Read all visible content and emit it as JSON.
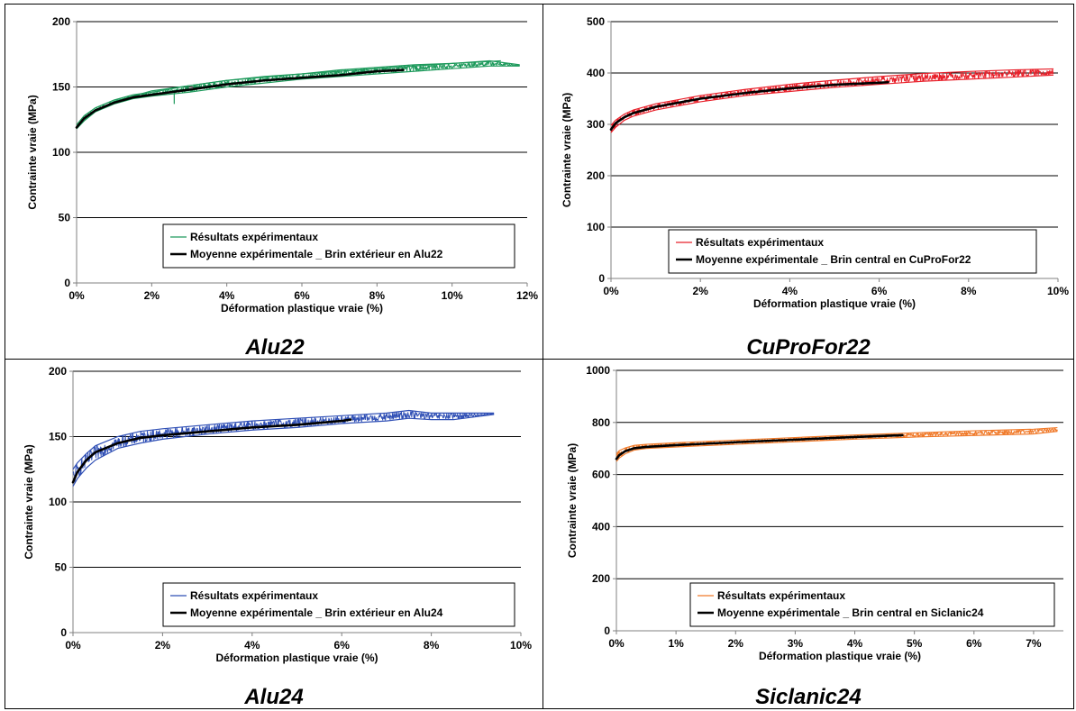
{
  "chart_data": [
    {
      "type": "line",
      "caption": "Alu22",
      "xlabel": "Déformation plastique vraie (%)",
      "ylabel": "Contrainte vraie (MPa)",
      "xlim": [
        0,
        12
      ],
      "ylim": [
        0,
        200
      ],
      "xticks": [
        0,
        2,
        4,
        6,
        8,
        10,
        12
      ],
      "yticks": [
        0,
        50,
        100,
        150,
        200
      ],
      "xtick_labels": [
        "0%",
        "2%",
        "4%",
        "6%",
        "8%",
        "10%",
        "12%"
      ],
      "ytick_labels": [
        "0",
        "50",
        "100",
        "150",
        "200"
      ],
      "grid": "horizontal",
      "legend_position": "bottom-right",
      "series": [
        {
          "name": "Résultats expérimentaux",
          "color": "#1e9a5c",
          "kind": "band",
          "x": [
            0,
            0.2,
            0.5,
            1,
            1.5,
            2,
            3,
            4,
            5,
            6,
            7,
            8,
            9,
            10,
            11,
            11.8
          ],
          "upper": [
            121,
            128,
            134,
            140,
            144,
            146,
            151,
            155,
            158,
            160,
            163,
            165,
            167,
            168,
            170,
            167
          ],
          "lower": [
            118,
            124,
            131,
            137,
            141,
            143,
            146,
            150,
            153,
            156,
            158,
            160,
            162,
            164,
            166,
            166
          ],
          "extra_lines": [
            {
              "x": [
                0,
                0.5,
                1,
                2,
                3,
                4,
                6,
                8,
                10,
                11.3
              ],
              "y": [
                119,
                132,
                139,
                147,
                151,
                155,
                160,
                164,
                168,
                170
              ]
            },
            {
              "x": [
                2.6,
                2.6,
                2.7
              ],
              "y": [
                137,
                145,
                148
              ]
            }
          ]
        },
        {
          "name": "Moyenne expérimentale _ Brin extérieur en Alu22",
          "color": "#000000",
          "kind": "line",
          "x": [
            0,
            0.2,
            0.5,
            1,
            1.5,
            2,
            3,
            4,
            5,
            6,
            7,
            8,
            8.7
          ],
          "y": [
            119,
            126,
            132,
            138,
            142,
            144,
            148,
            152,
            155,
            157,
            159,
            162,
            163
          ]
        }
      ]
    },
    {
      "type": "line",
      "caption": "CuProFor22",
      "xlabel": "Déformation plastique vraie  (%)",
      "ylabel": "Contrainte vraie (MPa)",
      "xlim": [
        0,
        10
      ],
      "ylim": [
        0,
        500
      ],
      "xticks": [
        0,
        2,
        4,
        6,
        8,
        10
      ],
      "yticks": [
        0,
        100,
        200,
        300,
        400,
        500
      ],
      "xtick_labels": [
        "0%",
        "2%",
        "4%",
        "6%",
        "8%",
        "10%"
      ],
      "ytick_labels": [
        "0",
        "100",
        "200",
        "300",
        "400",
        "500"
      ],
      "grid": "horizontal",
      "legend_position": "bottom-right",
      "series": [
        {
          "name": "Résultats expérimentaux",
          "color": "#e8202a",
          "kind": "band",
          "x": [
            0,
            0.1,
            0.3,
            0.5,
            1,
            2,
            3,
            4,
            5,
            6,
            7,
            8,
            9,
            9.9
          ],
          "upper": [
            298,
            308,
            320,
            328,
            340,
            356,
            368,
            378,
            386,
            393,
            399,
            403,
            406,
            408
          ],
          "lower": [
            284,
            294,
            308,
            316,
            328,
            344,
            356,
            364,
            372,
            378,
            384,
            388,
            392,
            396
          ]
        },
        {
          "name": "Moyenne expérimentale _ Brin central en CuProFor22",
          "color": "#000000",
          "kind": "line",
          "x": [
            0,
            0.1,
            0.3,
            0.5,
            1,
            2,
            3,
            4,
            5,
            6,
            6.2
          ],
          "y": [
            290,
            302,
            314,
            322,
            334,
            350,
            361,
            370,
            377,
            381,
            382
          ]
        }
      ]
    },
    {
      "type": "line",
      "caption": "Alu24",
      "xlabel": "Déformation plastique vraie (%)",
      "ylabel": "Contrainte vraie (MPa)",
      "xlim": [
        0,
        10
      ],
      "ylim": [
        0,
        200
      ],
      "xticks": [
        0,
        2,
        4,
        6,
        8,
        10
      ],
      "yticks": [
        0,
        50,
        100,
        150,
        200
      ],
      "xtick_labels": [
        "0%",
        "2%",
        "4%",
        "6%",
        "8%",
        "10%"
      ],
      "ytick_labels": [
        "0",
        "50",
        "100",
        "150",
        "200"
      ],
      "grid": "horizontal",
      "legend_position": "bottom-right",
      "series": [
        {
          "name": "Résultats expérimentaux",
          "color": "#2f4fb5",
          "kind": "band",
          "x": [
            0,
            0.1,
            0.3,
            0.5,
            1,
            1.5,
            2,
            3,
            4,
            5,
            6,
            7,
            7.5,
            8,
            8.5,
            9.4
          ],
          "upper": [
            125,
            130,
            137,
            143,
            150,
            154,
            156,
            159,
            162,
            164,
            166,
            168,
            170,
            168,
            168,
            168
          ],
          "lower": [
            112,
            118,
            126,
            132,
            141,
            145,
            148,
            152,
            155,
            157,
            160,
            162,
            164,
            163,
            163,
            167
          ]
        },
        {
          "name": "Moyenne expérimentale _ Brin extérieur en Alu24",
          "color": "#000000",
          "kind": "line",
          "x": [
            0,
            0.1,
            0.3,
            0.5,
            1,
            1.5,
            2,
            3,
            4,
            5,
            6,
            6.2
          ],
          "y": [
            115,
            123,
            132,
            138,
            145,
            149,
            151,
            154,
            157,
            159,
            162,
            163
          ]
        }
      ]
    },
    {
      "type": "line",
      "caption": "Siclanic24",
      "xlabel": "Déformation plastique vraie (%)",
      "ylabel": "Contrainte vraie (MPa)",
      "xlim": [
        0,
        7.5
      ],
      "ylim": [
        0,
        1000
      ],
      "xticks": [
        0,
        1,
        2,
        3,
        4,
        5,
        6,
        7
      ],
      "yticks": [
        0,
        200,
        400,
        600,
        800,
        1000
      ],
      "xtick_labels": [
        "0%",
        "1%",
        "2%",
        "3%",
        "4%",
        "5%",
        "6%",
        "7%"
      ],
      "ytick_labels": [
        "0",
        "200",
        "400",
        "600",
        "800",
        "1000"
      ],
      "grid": "horizontal",
      "legend_position": "bottom-right",
      "series": [
        {
          "name": "Résultats expérimentaux",
          "color": "#f07a2a",
          "kind": "band",
          "x": [
            0,
            0.05,
            0.15,
            0.3,
            0.5,
            1,
            2,
            3,
            4,
            5,
            6,
            7,
            7.4
          ],
          "upper": [
            680,
            692,
            702,
            712,
            716,
            722,
            732,
            742,
            752,
            760,
            768,
            774,
            780
          ],
          "lower": [
            650,
            664,
            680,
            694,
            700,
            706,
            716,
            726,
            736,
            744,
            750,
            756,
            766
          ]
        },
        {
          "name": "Moyenne expérimentale _ Brin central en Siclanic24",
          "color": "#000000",
          "kind": "line",
          "x": [
            0,
            0.05,
            0.15,
            0.3,
            0.5,
            1,
            2,
            3,
            4,
            4.8
          ],
          "y": [
            660,
            675,
            690,
            701,
            706,
            713,
            724,
            734,
            744,
            751
          ]
        }
      ]
    }
  ]
}
